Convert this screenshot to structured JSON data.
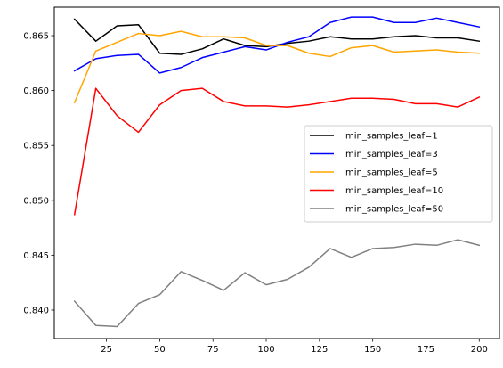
{
  "chart_data": {
    "type": "line",
    "title": "",
    "xlabel": "",
    "ylabel": "",
    "xlim": [
      0.5,
      209.5
    ],
    "ylim": [
      0.8374,
      0.8676
    ],
    "xticks": [
      25,
      50,
      75,
      100,
      125,
      150,
      175,
      200
    ],
    "xtick_labels": [
      "25",
      "50",
      "75",
      "100",
      "125",
      "150",
      "175",
      "200"
    ],
    "yticks": [
      0.84,
      0.845,
      0.85,
      0.855,
      0.86,
      0.865
    ],
    "ytick_labels": [
      "0.840",
      "0.845",
      "0.850",
      "0.855",
      "0.860",
      "0.865"
    ],
    "grid": false,
    "legend_position": "center-right",
    "x": [
      10,
      20,
      30,
      40,
      50,
      60,
      70,
      80,
      90,
      100,
      110,
      120,
      130,
      140,
      150,
      160,
      170,
      180,
      190,
      200
    ],
    "series": [
      {
        "name": "min_samples_leaf=1",
        "color": "#000000",
        "values": [
          0.8665,
          0.8645,
          0.8659,
          0.866,
          0.8634,
          0.8633,
          0.8638,
          0.8647,
          0.8641,
          0.864,
          0.8643,
          0.8645,
          0.8649,
          0.8647,
          0.8647,
          0.8649,
          0.865,
          0.8648,
          0.8648,
          0.8645
        ]
      },
      {
        "name": "min_samples_leaf=3",
        "color": "#0000ff",
        "values": [
          0.8618,
          0.8629,
          0.8632,
          0.8633,
          0.8616,
          0.8621,
          0.863,
          0.8635,
          0.864,
          0.8637,
          0.8644,
          0.8649,
          0.8662,
          0.8667,
          0.8667,
          0.8662,
          0.8662,
          0.8666,
          0.8662,
          0.8658
        ]
      },
      {
        "name": "min_samples_leaf=5",
        "color": "#ffa500",
        "values": [
          0.8589,
          0.8636,
          0.8644,
          0.8652,
          0.865,
          0.8654,
          0.8649,
          0.8649,
          0.8648,
          0.8641,
          0.8641,
          0.8634,
          0.8631,
          0.8639,
          0.8641,
          0.8635,
          0.8636,
          0.8637,
          0.8635,
          0.8634
        ]
      },
      {
        "name": "min_samples_leaf=10",
        "color": "#ff0000",
        "values": [
          0.8487,
          0.8602,
          0.8577,
          0.8562,
          0.8587,
          0.86,
          0.8602,
          0.859,
          0.8586,
          0.8586,
          0.8585,
          0.8587,
          0.859,
          0.8593,
          0.8593,
          0.8592,
          0.8588,
          0.8588,
          0.8585,
          0.8594
        ]
      },
      {
        "name": "min_samples_leaf=50",
        "color": "#808080",
        "values": [
          0.8408,
          0.8386,
          0.8385,
          0.8406,
          0.8414,
          0.8435,
          0.8427,
          0.8418,
          0.8434,
          0.8423,
          0.8428,
          0.8439,
          0.8456,
          0.8448,
          0.8456,
          0.8457,
          0.846,
          0.8459,
          0.8464,
          0.8459
        ]
      }
    ]
  }
}
